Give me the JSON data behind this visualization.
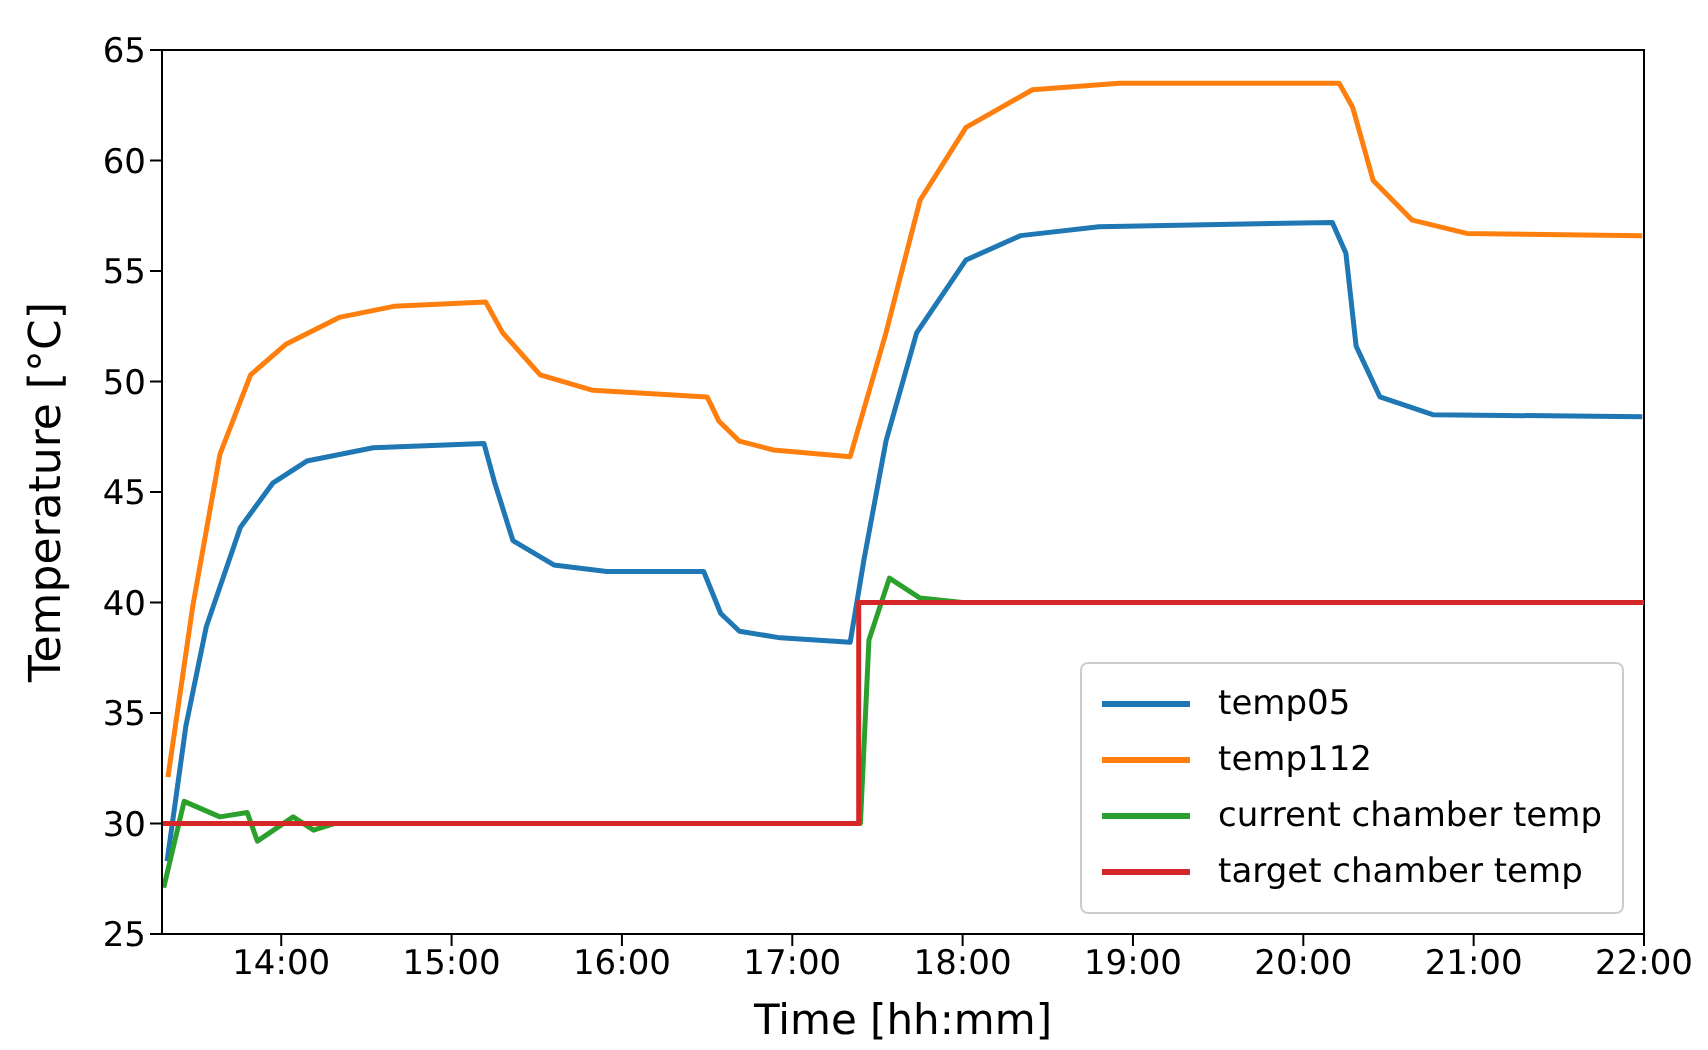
{
  "chart_data": {
    "type": "line",
    "xlabel": "Time [hh:mm]",
    "ylabel": "Temperature [°C]",
    "xlim": [
      13.3,
      22
    ],
    "xticks": [
      {
        "value": 14,
        "label": "14:00"
      },
      {
        "value": 15,
        "label": "15:00"
      },
      {
        "value": 16,
        "label": "16:00"
      },
      {
        "value": 17,
        "label": "17:00"
      },
      {
        "value": 18,
        "label": "18:00"
      },
      {
        "value": 19,
        "label": "19:00"
      },
      {
        "value": 20,
        "label": "20:00"
      },
      {
        "value": 21,
        "label": "21:00"
      },
      {
        "value": 22,
        "label": "22:00"
      }
    ],
    "ylim": [
      25,
      65
    ],
    "yticks": [
      25,
      30,
      35,
      40,
      45,
      50,
      55,
      60,
      65
    ],
    "grid": false,
    "legend": "bottom right",
    "marker": "none",
    "line_style": "solid",
    "series": [
      {
        "name": "temp05",
        "color": "#1f77b4",
        "x": [
          13.33,
          13.44,
          13.56,
          13.76,
          13.95,
          14.15,
          14.54,
          15.19,
          15.25,
          15.36,
          15.6,
          15.91,
          16.48,
          16.58,
          16.69,
          16.93,
          17.34,
          17.42,
          17.55,
          17.73,
          18.02,
          18.34,
          18.8,
          20.17,
          20.25,
          20.31,
          20.45,
          20.76,
          21.99
        ],
        "values": [
          28.3,
          34.4,
          38.9,
          43.4,
          45.4,
          46.4,
          47.0,
          47.2,
          45.5,
          42.8,
          41.7,
          41.4,
          41.4,
          39.5,
          38.7,
          38.4,
          38.2,
          41.9,
          47.3,
          52.2,
          55.5,
          56.6,
          57.0,
          57.2,
          55.8,
          51.6,
          49.3,
          48.5,
          48.4
        ]
      },
      {
        "name": "temp112",
        "color": "#ff7f0e",
        "x": [
          13.335,
          13.48,
          13.64,
          13.82,
          14.03,
          14.34,
          14.66,
          15.2,
          15.3,
          15.52,
          15.83,
          16.5,
          16.57,
          16.69,
          16.89,
          17.34,
          17.55,
          17.75,
          18.02,
          18.41,
          18.92,
          20.21,
          20.29,
          20.41,
          20.64,
          20.96,
          21.99
        ],
        "values": [
          32.1,
          39.8,
          46.7,
          50.3,
          51.7,
          52.9,
          53.4,
          53.6,
          52.2,
          50.3,
          49.6,
          49.3,
          48.2,
          47.3,
          46.9,
          46.6,
          52.2,
          58.2,
          61.5,
          63.2,
          63.5,
          63.5,
          62.4,
          59.1,
          57.3,
          56.7,
          56.6
        ]
      },
      {
        "name": "current chamber temp",
        "color": "#2ca02c",
        "x": [
          13.31,
          13.43,
          13.64,
          13.8,
          13.86,
          14.07,
          14.19,
          14.31,
          17.4,
          17.45,
          17.57,
          17.75,
          18.0
        ],
        "values": [
          27.1,
          31.0,
          30.3,
          30.5,
          29.2,
          30.3,
          29.7,
          30.0,
          30.0,
          38.3,
          41.1,
          40.2,
          40.0
        ]
      },
      {
        "name": "target chamber temp",
        "color": "#d62728",
        "type": "step",
        "x": [
          13.3,
          17.39,
          22.0
        ],
        "values": [
          30,
          40,
          40
        ]
      }
    ]
  }
}
